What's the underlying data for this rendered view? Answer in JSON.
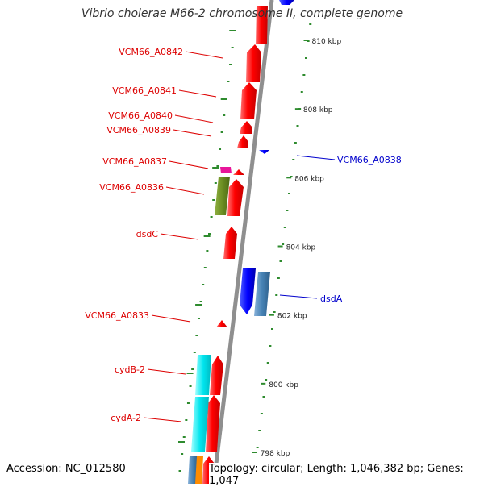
{
  "title": "Vibrio cholerae M66-2 chromosome II, complete genome",
  "footer": {
    "accession": "Accession: NC_012580",
    "stats": "Topology: circular; Length: 1,046,382 bp; Genes: 1,047"
  },
  "colors": {
    "backbone": "#8f8f8f",
    "tick": "#2e8b2e",
    "forward_gene": "#ff0000",
    "reverse_gene": "#0000ff",
    "forward_label": "#dd0000",
    "reverse_label": "#0000cc",
    "cog_cyan": "#00e5ee",
    "cog_olive": "#6b8e23",
    "cog_magenta": "#e8169a",
    "cog_steel": "#4682b4",
    "cog_orange": "#ff8c00"
  },
  "kbp_labels": [
    {
      "kbp": 810,
      "text": "810 kbp"
    },
    {
      "kbp": 808,
      "text": "808 kbp"
    },
    {
      "kbp": 806,
      "text": "806 kbp"
    },
    {
      "kbp": 804,
      "text": "804 kbp"
    },
    {
      "kbp": 802,
      "text": "802 kbp"
    },
    {
      "kbp": 800,
      "text": "800 kbp"
    },
    {
      "kbp": 798,
      "text": "798 kbp"
    }
  ],
  "gene_labels_forward": [
    {
      "name": "VCM66_A0842"
    },
    {
      "name": "VCM66_A0841"
    },
    {
      "name": "VCM66_A0840"
    },
    {
      "name": "VCM66_A0839"
    },
    {
      "name": "VCM66_A0837"
    },
    {
      "name": "VCM66_A0836"
    },
    {
      "name": "dsdC"
    },
    {
      "name": "VCM66_A0833"
    },
    {
      "name": "cydB-2"
    },
    {
      "name": "cydA-2"
    }
  ],
  "gene_labels_reverse": [
    {
      "name": "VCM66_A0838"
    },
    {
      "name": "dsdA"
    }
  ]
}
